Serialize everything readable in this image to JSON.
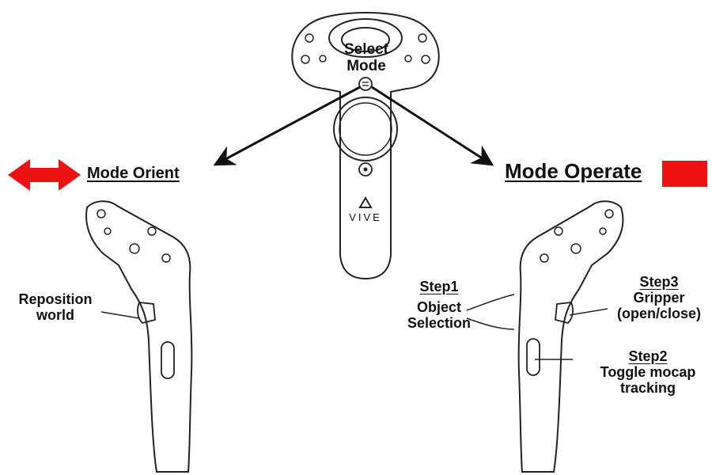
{
  "diagram": {
    "center_label": {
      "line1": "Select",
      "line2": "Mode"
    },
    "brand_text": "VIVE",
    "mode_orient": {
      "title": "Mode Orient",
      "accent_color": "#ee1111",
      "reposition": {
        "line1": "Reposition",
        "line2": "world"
      }
    },
    "mode_operate": {
      "title": "Mode Operate",
      "accent_color": "#ee1111",
      "step1": {
        "title": "Step1",
        "line1": "Object",
        "line2": "Selection"
      },
      "step2": {
        "title": "Step2",
        "line1": "Toggle mocap",
        "line2": "tracking"
      },
      "step3": {
        "title": "Step3",
        "line1": "Gripper",
        "line2": "(open/close)"
      }
    }
  }
}
